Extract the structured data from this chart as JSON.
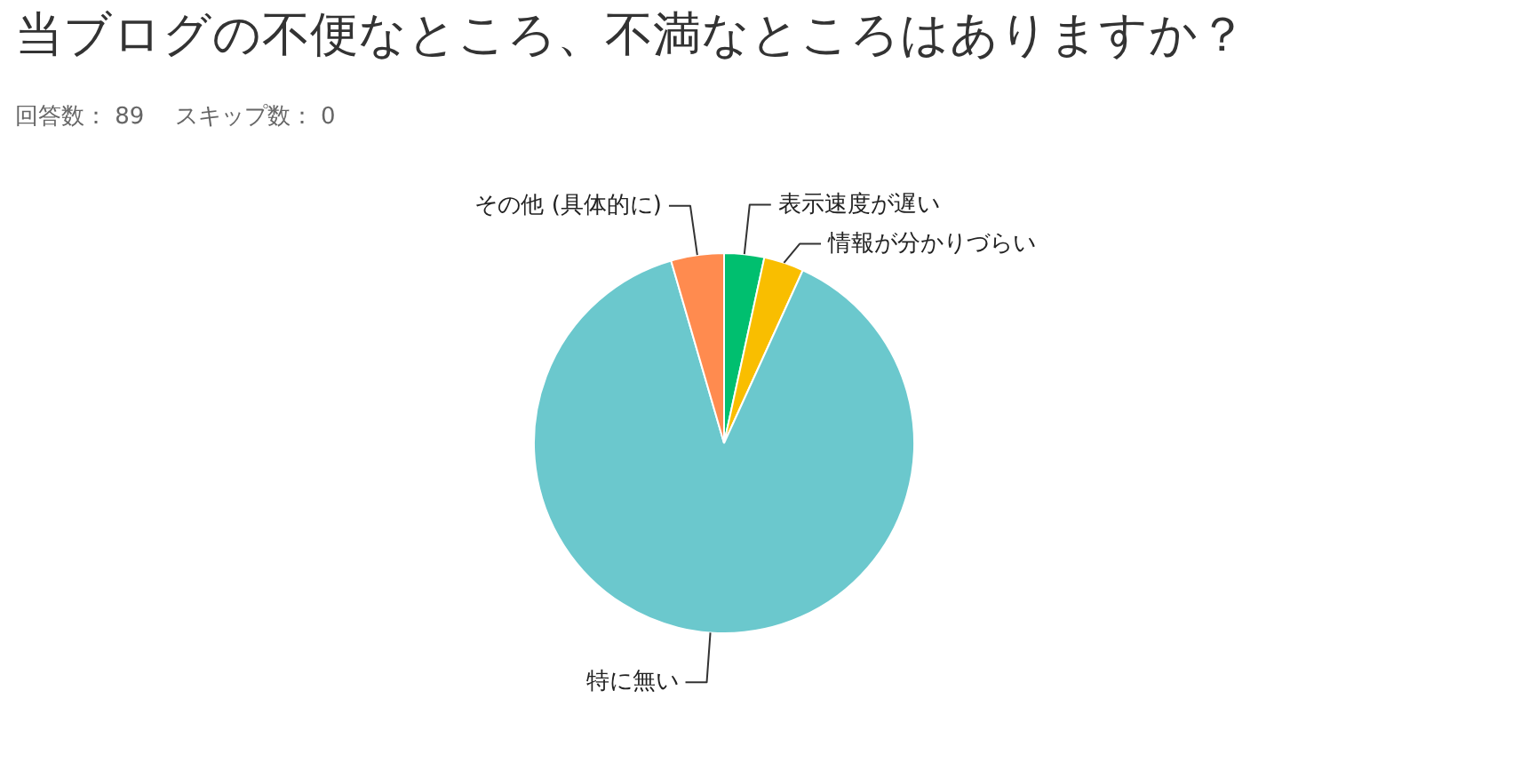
{
  "chart_data": {
    "type": "pie",
    "title": "当ブログの不便なところ、不満なところはありますか？",
    "subtitle": "回答数： 89　 スキップ数： 0",
    "categories": [
      "表示速度が遅い",
      "情報が分かりづらい",
      "特に無い",
      "その他 (具体的に)"
    ],
    "values": [
      3.4,
      3.4,
      88.7,
      4.5
    ],
    "colors": [
      "#00bf6f",
      "#f9be00",
      "#6bc8cd",
      "#ff8b4f"
    ]
  }
}
